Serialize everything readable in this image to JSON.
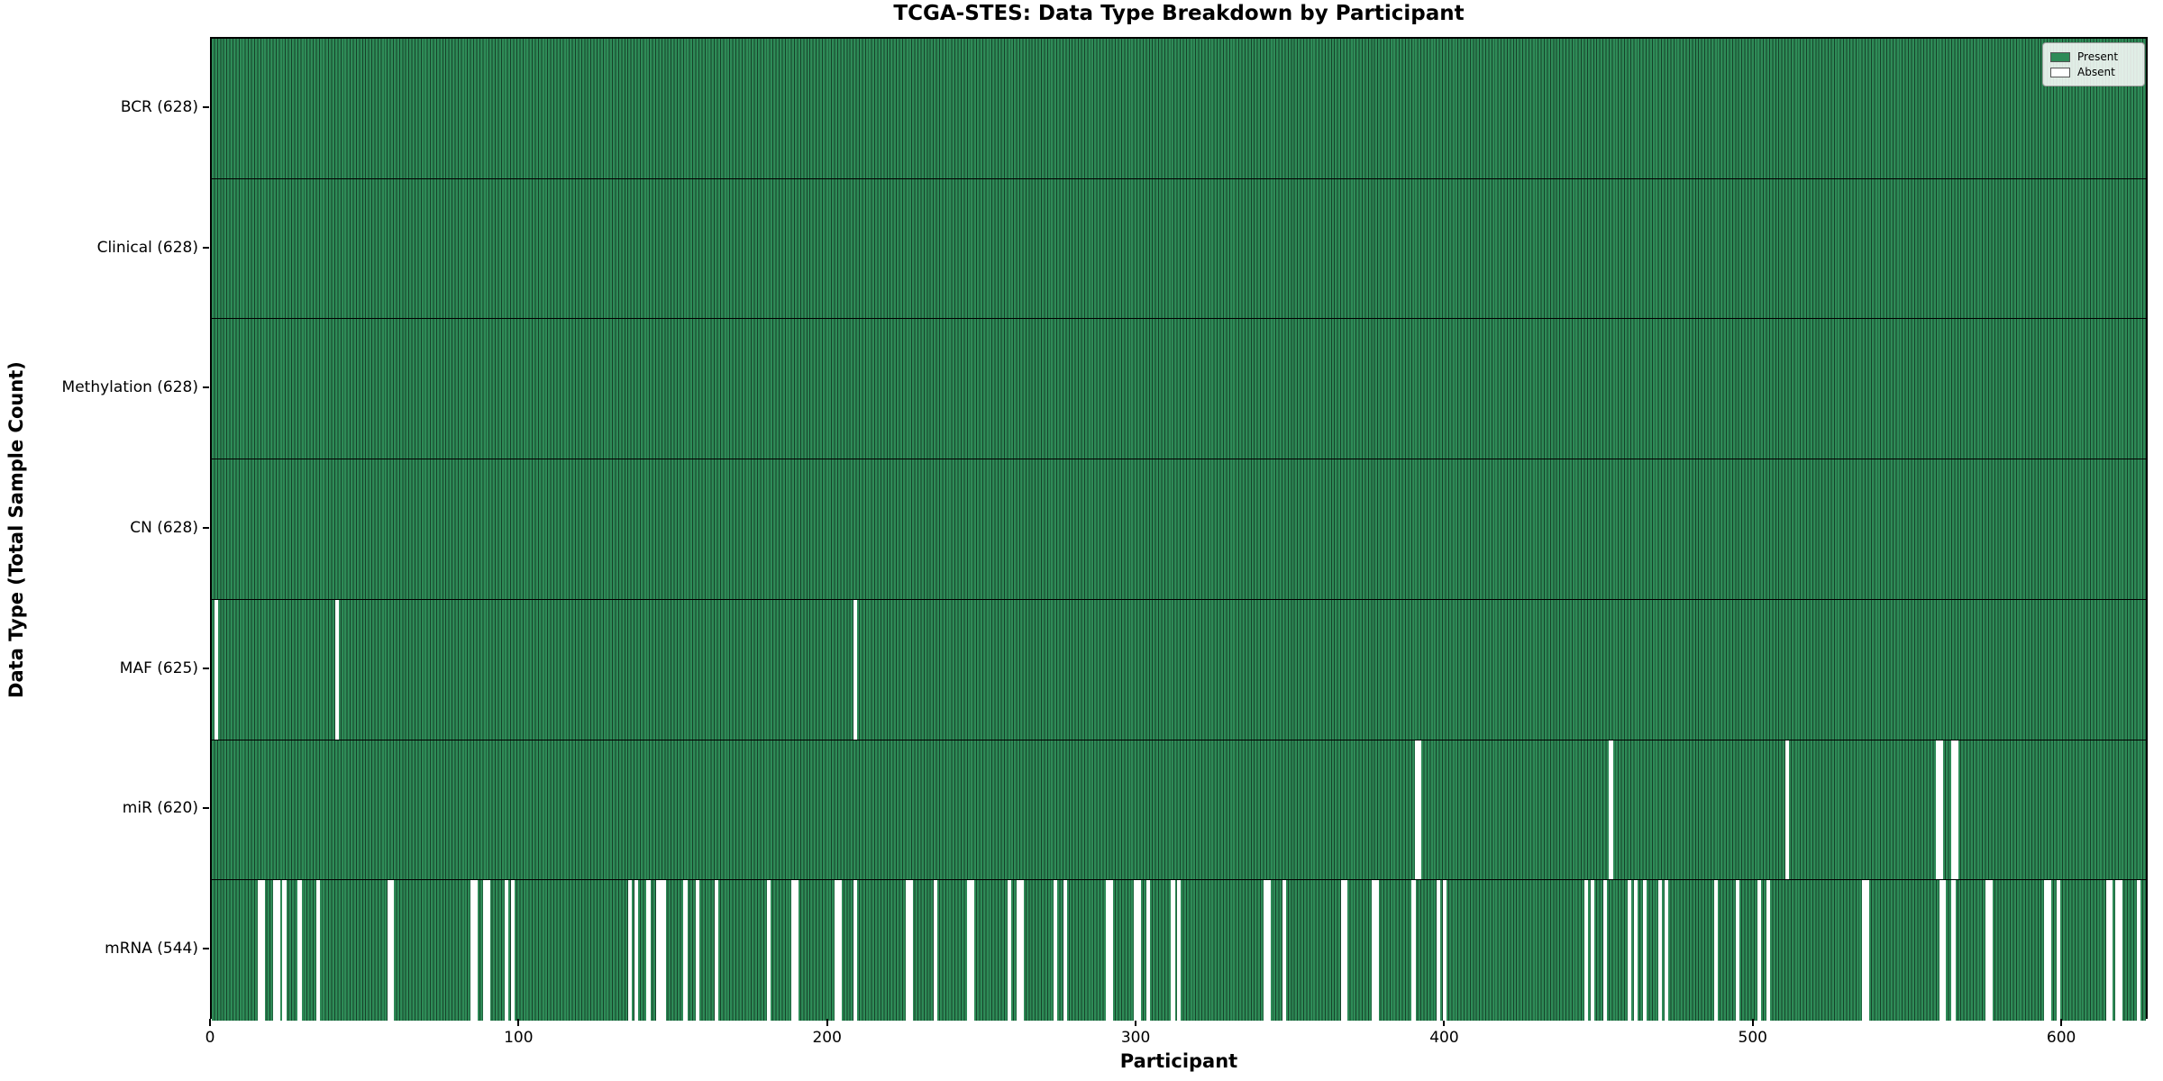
{
  "title": "TCGA-STES: Data Type Breakdown by Participant",
  "chart_data": {
    "type": "heatmap",
    "title": "TCGA-STES: Data Type Breakdown by Participant",
    "xlabel": "Participant",
    "ylabel": "Data Type (Total Sample Count)",
    "x_ticks": [
      0,
      100,
      200,
      300,
      400,
      500,
      600
    ],
    "n_participants": 628,
    "grid": false,
    "legend_position": "upper right",
    "legend": [
      {
        "label": "Present",
        "color": "#2e8b57"
      },
      {
        "label": "Absent",
        "color": "#ffffff"
      }
    ],
    "colors": {
      "present_fill": "#2e8b57",
      "present_edge": "#16422a",
      "absent_fill": "#ffffff",
      "row_divider": "#000000",
      "plot_border": "#000000"
    },
    "rows": [
      {
        "label": "BCR (628)",
        "total": 628,
        "absent": []
      },
      {
        "label": "Clinical (628)",
        "total": 628,
        "absent": []
      },
      {
        "label": "Methylation (628)",
        "total": 628,
        "absent": []
      },
      {
        "label": "CN (628)",
        "total": 628,
        "absent": []
      },
      {
        "label": "MAF (625)",
        "total": 625,
        "absent": [
          1,
          40,
          208
        ]
      },
      {
        "label": "miR (620)",
        "total": 620,
        "absent": [
          390,
          391,
          453,
          510,
          559,
          560,
          564,
          565
        ]
      },
      {
        "label": "mRNA (544)",
        "total": 544,
        "absent": [
          15,
          16,
          20,
          21,
          23,
          28,
          34,
          57,
          58,
          84,
          85,
          88,
          89,
          95,
          97,
          135,
          137,
          141,
          144,
          145,
          146,
          153,
          157,
          163,
          180,
          188,
          189,
          202,
          203,
          208,
          225,
          226,
          234,
          245,
          246,
          258,
          261,
          262,
          273,
          276,
          290,
          291,
          299,
          300,
          303,
          311,
          313,
          341,
          342,
          347,
          366,
          367,
          376,
          377,
          389,
          397,
          399,
          445,
          447,
          451,
          459,
          461,
          464,
          469,
          471,
          487,
          494,
          501,
          504,
          535,
          536,
          560,
          561,
          564,
          575,
          576,
          594,
          595,
          598,
          614,
          615,
          617,
          618,
          624
        ]
      }
    ]
  }
}
